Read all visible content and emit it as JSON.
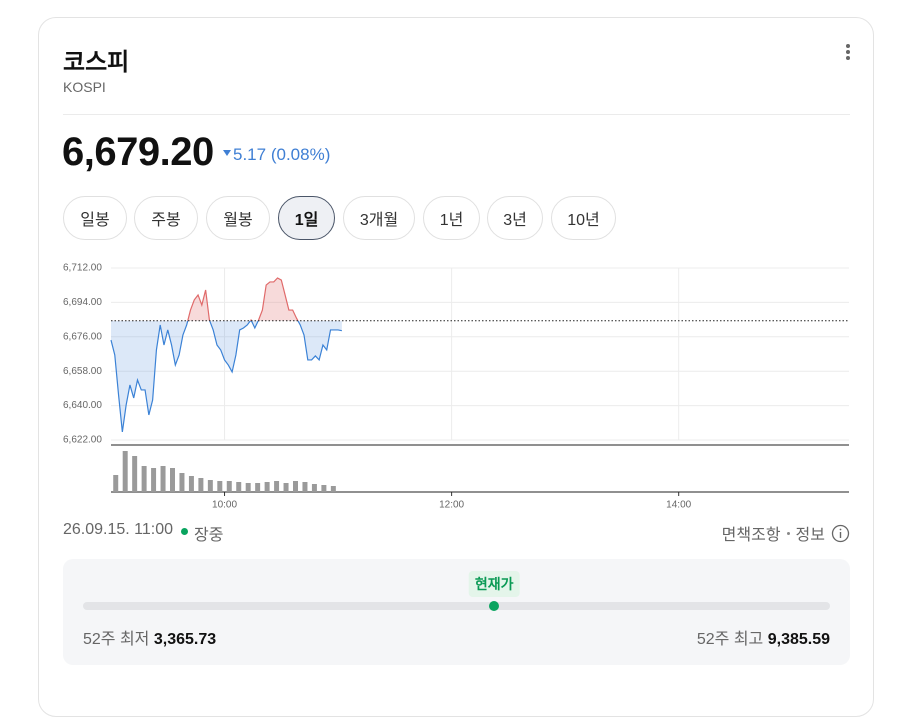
{
  "header": {
    "title": "코스피",
    "subtitle": "KOSPI"
  },
  "quote": {
    "price": {
      "value": 6679.2,
      "label": "6,679.20"
    },
    "change": "5.17",
    "change_percent": "(0.08%)"
  },
  "tabs": [
    "일봉",
    "주봉",
    "월봉",
    "1일",
    "3개월",
    "1년",
    "3년",
    "10년"
  ],
  "selected_tab": 3,
  "chart_data": {
    "type": "line",
    "color": "#3b82d6",
    "up_color": "#e06a6a",
    "x": [
      540,
      542,
      544,
      546,
      548,
      550,
      552,
      554,
      556,
      558,
      560,
      562,
      564,
      566,
      568,
      570,
      572,
      574,
      576,
      578,
      580,
      582,
      584,
      586,
      588,
      590,
      592,
      594,
      596,
      598,
      600,
      602,
      604,
      606,
      608,
      610,
      612,
      614,
      616,
      618,
      620,
      622,
      624,
      626,
      628,
      630,
      632,
      634,
      636,
      638,
      640,
      642,
      644,
      646,
      648,
      650,
      652,
      654,
      656,
      658,
      660,
      662
    ],
    "values": [
      6674.3,
      6666.5,
      6645.5,
      6626.2,
      6640.3,
      6650.8,
      6644.0,
      6653.4,
      6648.2,
      6648.2,
      6635.1,
      6642.9,
      6669.1,
      6682.2,
      6671.7,
      6679.6,
      6671.7,
      6661.2,
      6666.5,
      6676.9,
      6682.2,
      6690.0,
      6695.3,
      6697.9,
      6692.6,
      6700.5,
      6684.8,
      6679.6,
      6671.7,
      6669.1,
      6663.9,
      6661.2,
      6657.6,
      6666.5,
      6679.6,
      6680.6,
      6682.2,
      6684.8,
      6680.6,
      6684.8,
      6690.0,
      6703.1,
      6704.7,
      6704.7,
      6706.8,
      6705.7,
      6697.9,
      6690.0,
      6690.0,
      6685.8,
      6682.2,
      6676.9,
      6663.9,
      6663.9,
      6666.0,
      6663.9,
      6671.7,
      6669.1,
      6679.6,
      6679.6,
      6679.6,
      6679.2
    ],
    "reference": 6684.37,
    "xlim": [
      540,
      930
    ],
    "xticks": [
      {
        "value": 600,
        "label": "10:00"
      },
      {
        "value": 720,
        "label": "12:00"
      },
      {
        "value": 840,
        "label": "14:00"
      }
    ],
    "ylim": [
      6622,
      6712
    ],
    "yticks": [
      {
        "value": 6622,
        "label": "6,622.00"
      },
      {
        "value": 6640,
        "label": "6,640.00"
      },
      {
        "value": 6658,
        "label": "6,658.00"
      },
      {
        "value": 6676,
        "label": "6,676.00"
      },
      {
        "value": 6694,
        "label": "6,694.00"
      },
      {
        "value": 6712,
        "label": "6,712.00"
      }
    ],
    "grid": true,
    "volume": {
      "color": "#9a9a9a",
      "ylim": [
        0,
        50
      ],
      "x": [
        542.5,
        547.5,
        552.5,
        557.5,
        562.5,
        567.5,
        572.5,
        577.5,
        582.5,
        587.5,
        592.5,
        597.5,
        602.5,
        607.5,
        612.5,
        617.5,
        622.5,
        627.5,
        632.5,
        637.5,
        642.5,
        647.5,
        652.5,
        657.5
      ],
      "values": [
        17,
        41,
        36,
        26,
        24,
        26,
        24,
        19,
        16,
        14,
        12,
        11,
        11,
        10,
        9,
        9,
        10,
        11,
        9,
        11,
        10,
        8,
        7,
        6
      ]
    }
  },
  "footer": {
    "timestamp": "26.09.15. 11:00",
    "status": "장중",
    "disclaimer": "면책조항",
    "info": "정보"
  },
  "range": {
    "current_label": "현재가",
    "low_label": "52주 최저",
    "low": {
      "value": 3365.73,
      "label": "3,365.73"
    },
    "high_label": "52주 최고",
    "high": {
      "value": 9385.59,
      "label": "9,385.59"
    }
  }
}
